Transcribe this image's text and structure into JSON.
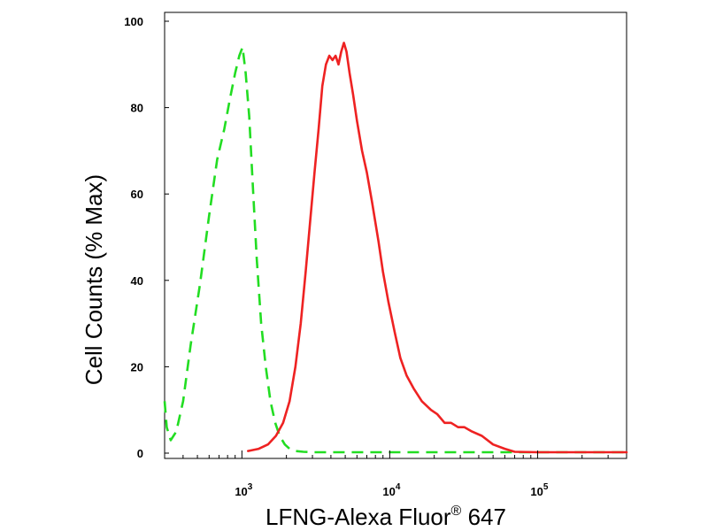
{
  "chart_data": {
    "type": "line",
    "xlabel": "LFNG-Alexa Fluor",
    "xlabel_sup": "®",
    "xlabel_suffix": " 647",
    "ylabel": "Cell Counts (% Max)",
    "x_scale": "log",
    "xlim": [
      300,
      400000
    ],
    "ylim": [
      0,
      100
    ],
    "x_ticks": [
      {
        "base": "10",
        "exp": "3",
        "value": 1000
      },
      {
        "base": "10",
        "exp": "4",
        "value": 10000
      },
      {
        "base": "10",
        "exp": "5",
        "value": 100000
      }
    ],
    "y_ticks": [
      "0",
      "20",
      "40",
      "60",
      "80",
      "100"
    ],
    "grid": false,
    "series": [
      {
        "color": "#22dd22",
        "style": "dashed",
        "x": [
          300,
          310,
          330,
          360,
          400,
          450,
          520,
          600,
          680,
          760,
          830,
          900,
          960,
          1010,
          1060,
          1120,
          1180,
          1260,
          1350,
          1450,
          1560,
          1680,
          1800,
          1950,
          2100,
          2300,
          2600,
          3000,
          4000,
          8000,
          20000,
          50000,
          100000,
          300000,
          400000
        ],
        "y": [
          12,
          6,
          3,
          5,
          12,
          25,
          39,
          55,
          68,
          75,
          82,
          88,
          92,
          94,
          88,
          78,
          63,
          45,
          30,
          20,
          12,
          7,
          4,
          2,
          1,
          0.5,
          0.3,
          0.2,
          0.2,
          0.2,
          0.2,
          0.2,
          0.2,
          0.2,
          0.2
        ]
      },
      {
        "color": "#ee2222",
        "style": "solid",
        "x": [
          1100,
          1300,
          1500,
          1700,
          1900,
          2100,
          2300,
          2500,
          2700,
          2900,
          3100,
          3300,
          3500,
          3700,
          3900,
          4100,
          4300,
          4500,
          4700,
          4900,
          5100,
          5350,
          5650,
          6000,
          6500,
          7000,
          7600,
          8400,
          9000,
          9800,
          10800,
          11800,
          13000,
          14500,
          16500,
          19000,
          21000,
          23500,
          26000,
          29000,
          32000,
          36000,
          42000,
          50000,
          60000,
          70000,
          100000,
          400000
        ],
        "y": [
          0.5,
          1,
          2,
          4,
          7,
          12,
          20,
          30,
          42,
          54,
          65,
          75,
          85,
          90,
          92,
          91,
          92,
          90,
          93,
          95,
          93,
          88,
          83,
          77,
          70,
          65,
          58,
          49,
          42,
          35,
          28,
          22,
          18,
          15,
          12,
          10,
          9,
          7,
          7,
          6,
          6,
          5,
          4,
          2,
          1,
          0.3,
          0.2,
          0.2
        ]
      }
    ]
  }
}
